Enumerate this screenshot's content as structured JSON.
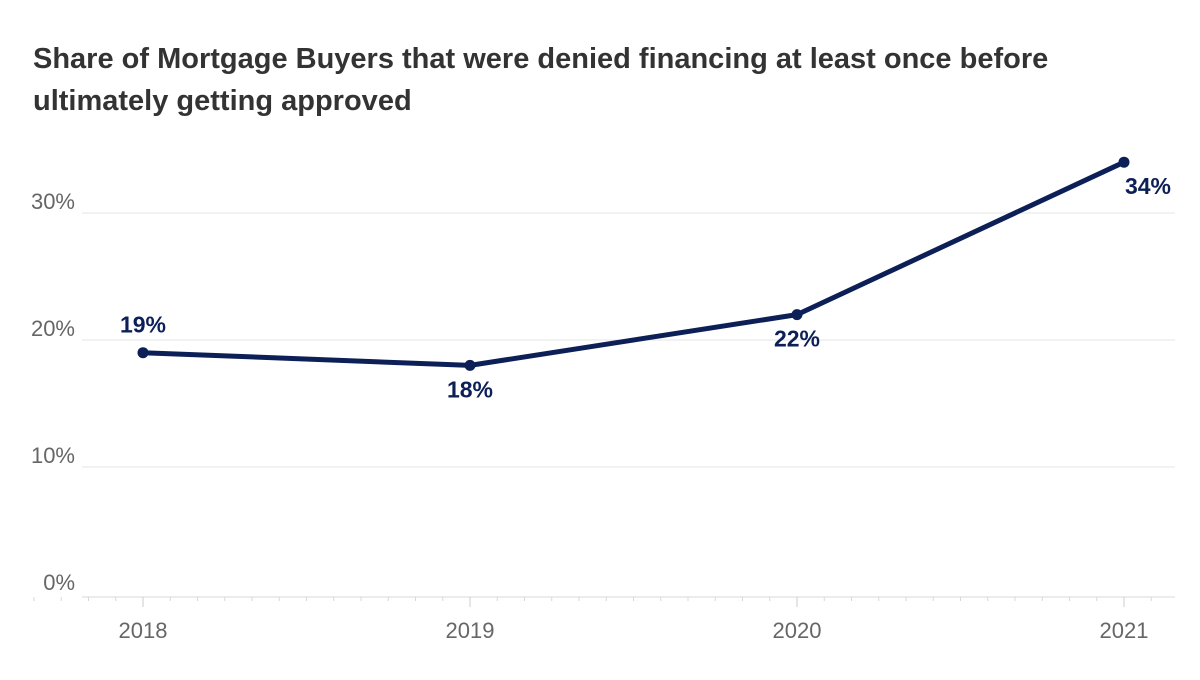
{
  "chart_data": {
    "type": "line",
    "title": "Share of Mortgage Buyers that were denied financing at least once before ultimately getting approved",
    "xlabel": "",
    "ylabel": "",
    "categories": [
      "2018",
      "2019",
      "2020",
      "2021"
    ],
    "series": [
      {
        "values": [
          19,
          18,
          22,
          34
        ],
        "labels": [
          "19%",
          "18%",
          "22%",
          "34%"
        ],
        "color": "#0c1f57"
      }
    ],
    "y_ticks": [
      0,
      10,
      20,
      30
    ],
    "y_tick_labels": [
      "0%",
      "10%",
      "20%",
      "30%"
    ],
    "ylim": [
      0,
      35
    ],
    "grid": true,
    "legend": "none",
    "colors": {
      "line": "#0c1f57",
      "grid": "#e6e6e6",
      "axis_text": "#666666",
      "title": "#333333"
    }
  }
}
